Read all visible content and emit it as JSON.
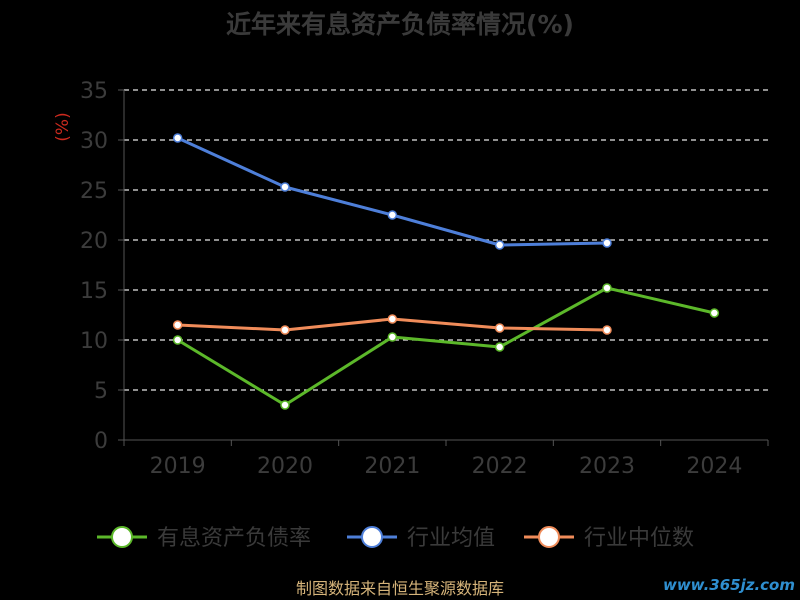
{
  "chart_data": {
    "type": "line",
    "title": "近年来有息资产负债率情况(%)",
    "ylabel": "(%)",
    "categories": [
      "2019",
      "2020",
      "2021",
      "2022",
      "2023",
      "2024"
    ],
    "ylim": [
      0,
      35
    ],
    "yticks": [
      0,
      5,
      10,
      15,
      20,
      25,
      30,
      35
    ],
    "grid": "horizontal dashed",
    "legend_position": "bottom",
    "series": [
      {
        "name": "有息资产负债率",
        "color": "#5cb82a",
        "values": [
          10.0,
          3.5,
          10.3,
          9.3,
          15.2,
          12.7
        ]
      },
      {
        "name": "行业均值",
        "color": "#4e7fd9",
        "values": [
          30.2,
          25.3,
          22.5,
          19.5,
          19.7,
          null
        ]
      },
      {
        "name": "行业中位数",
        "color": "#f08c5a",
        "values": [
          11.5,
          11.0,
          12.1,
          11.2,
          11.0,
          null
        ]
      }
    ]
  },
  "footer": "制图数据来自恒生聚源数据库",
  "watermark": "www.365jz.com"
}
